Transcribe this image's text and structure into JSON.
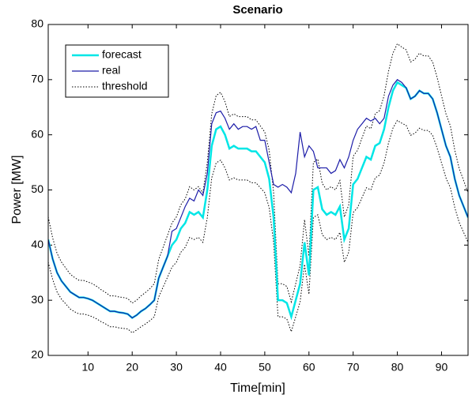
{
  "chart_data": {
    "type": "line",
    "title": "Scenario",
    "xlabel": "Time[min]",
    "ylabel": "Power [MW]",
    "xlim": [
      1,
      96
    ],
    "xticks": [
      10,
      20,
      30,
      40,
      50,
      60,
      70,
      80,
      90
    ],
    "ylim": [
      20,
      80
    ],
    "yticks": [
      20,
      30,
      40,
      50,
      60,
      70,
      80
    ],
    "legend": "upper-left",
    "x": [
      1,
      2,
      3,
      4,
      5,
      6,
      7,
      8,
      9,
      10,
      11,
      12,
      13,
      14,
      15,
      16,
      17,
      18,
      19,
      20,
      21,
      22,
      23,
      24,
      25,
      26,
      27,
      28,
      29,
      30,
      31,
      32,
      33,
      34,
      35,
      36,
      37,
      38,
      39,
      40,
      41,
      42,
      43,
      44,
      45,
      46,
      47,
      48,
      49,
      50,
      51,
      52,
      53,
      54,
      55,
      56,
      57,
      58,
      59,
      60,
      61,
      62,
      63,
      64,
      65,
      66,
      67,
      68,
      69,
      70,
      71,
      72,
      73,
      74,
      75,
      76,
      77,
      78,
      79,
      80,
      81,
      82,
      83,
      84,
      85,
      86,
      87,
      88,
      89,
      90,
      91,
      92,
      93,
      94,
      95,
      96
    ],
    "series": [
      {
        "name": "forecast",
        "color": "#00e6e6",
        "width": 2.5,
        "values": [
          41,
          37.5,
          35,
          33.5,
          32.5,
          31.5,
          31,
          30.5,
          30.5,
          30.3,
          30,
          29.5,
          29,
          28.5,
          28,
          28,
          27.8,
          27.7,
          27.5,
          26.8,
          27.3,
          28,
          28.5,
          29.2,
          30,
          34,
          36,
          38,
          40,
          41,
          43,
          44,
          46,
          45.5,
          46,
          45,
          50,
          58,
          61,
          61.5,
          60,
          57.5,
          58,
          57.5,
          57.5,
          57.5,
          57,
          57,
          56,
          55,
          52,
          45,
          30,
          30,
          29.5,
          27,
          30,
          33,
          40.5,
          34.5,
          50,
          50.5,
          46.5,
          45.5,
          46,
          45.5,
          47,
          41,
          43,
          51,
          52,
          54,
          56,
          55.5,
          58,
          58.5,
          61,
          65,
          68,
          69.5,
          69,
          68.5,
          66.5,
          67,
          68,
          67.5,
          67.5,
          66.5,
          64,
          61,
          58,
          56,
          52,
          49,
          47,
          45
        ]
      },
      {
        "name": "real",
        "color": "#1c1ca8",
        "width": 1.2,
        "values": [
          41,
          37.5,
          35,
          33.5,
          32.5,
          31.5,
          31,
          30.5,
          30.5,
          30.3,
          30,
          29.5,
          29,
          28.5,
          28,
          28,
          27.8,
          27.7,
          27.5,
          26.8,
          27.3,
          28,
          28.5,
          29.2,
          30,
          34,
          36,
          38,
          42.5,
          43,
          45,
          47,
          48.5,
          48,
          50,
          49,
          53,
          62,
          64,
          64.3,
          63,
          61,
          62,
          61,
          61.5,
          61.5,
          61,
          61.5,
          59,
          59,
          55,
          51,
          50.5,
          51,
          50.5,
          49.5,
          53,
          60.5,
          56,
          58,
          57,
          54,
          54,
          54,
          53,
          53.5,
          55.5,
          54,
          56,
          59,
          61,
          62,
          63,
          62.5,
          63,
          62,
          63,
          67,
          69,
          70,
          69.5,
          68.5,
          66.5,
          67,
          68,
          67.5,
          67.5,
          66.5,
          64,
          61,
          58,
          56,
          52,
          49,
          47,
          45
        ]
      },
      {
        "name": "threshold",
        "color": "#000000",
        "style": "dotted",
        "upper": [
          45.1,
          41.3,
          38.5,
          36.9,
          35.8,
          34.7,
          34.1,
          33.6,
          33.6,
          33.3,
          33,
          32.5,
          31.9,
          31.4,
          30.8,
          30.8,
          30.6,
          30.5,
          30.3,
          29.5,
          30,
          30.8,
          31.4,
          32.1,
          33,
          37.4,
          39.6,
          41.8,
          44,
          45.1,
          47.3,
          48.4,
          50.6,
          50,
          50.6,
          49.5,
          55,
          63.8,
          67.1,
          67.7,
          66,
          63.3,
          63.8,
          63.3,
          63.3,
          63.3,
          62.7,
          62.7,
          61.6,
          60.5,
          57.2,
          49.5,
          33,
          33,
          32.5,
          29.7,
          33,
          36.3,
          44.6,
          38,
          55,
          55.6,
          51.2,
          50,
          50.6,
          50,
          51.7,
          45.1,
          47.3,
          56.1,
          57.2,
          59.4,
          61.6,
          61.1,
          63.8,
          64.4,
          67.1,
          71.5,
          74.8,
          76.5,
          75.9,
          75.4,
          73.2,
          73.7,
          74.8,
          74.3,
          74.3,
          73.2,
          70.4,
          67.1,
          63.8,
          61.6,
          57.2,
          53.9,
          51.7,
          49.5
        ],
        "lower": [
          36.9,
          33.8,
          31.5,
          30.2,
          29.3,
          28.4,
          27.9,
          27.5,
          27.5,
          27.3,
          27,
          26.6,
          26.1,
          25.7,
          25.2,
          25.2,
          25,
          24.9,
          24.8,
          24.1,
          24.6,
          25.2,
          25.7,
          26.3,
          27,
          30.6,
          32.4,
          34.2,
          36,
          36.9,
          38.7,
          39.6,
          41.4,
          41,
          41.4,
          40.5,
          45,
          52.2,
          54.9,
          55.4,
          54,
          51.8,
          52.2,
          51.8,
          51.8,
          51.8,
          51.3,
          51.3,
          50.4,
          49.5,
          46.8,
          40.5,
          27,
          27,
          26.6,
          24.3,
          27,
          29.7,
          36.5,
          31.1,
          45,
          45.5,
          41.9,
          41,
          41.4,
          41,
          42.3,
          36.9,
          38.7,
          45.9,
          46.8,
          48.6,
          50.4,
          50,
          52.2,
          52.7,
          54.9,
          58.5,
          61.2,
          62.6,
          62.1,
          61.7,
          59.9,
          60.3,
          61.2,
          60.8,
          60.8,
          59.9,
          57.6,
          54.9,
          52.2,
          50.4,
          46.8,
          44.1,
          42.3,
          40.5
        ]
      }
    ]
  }
}
